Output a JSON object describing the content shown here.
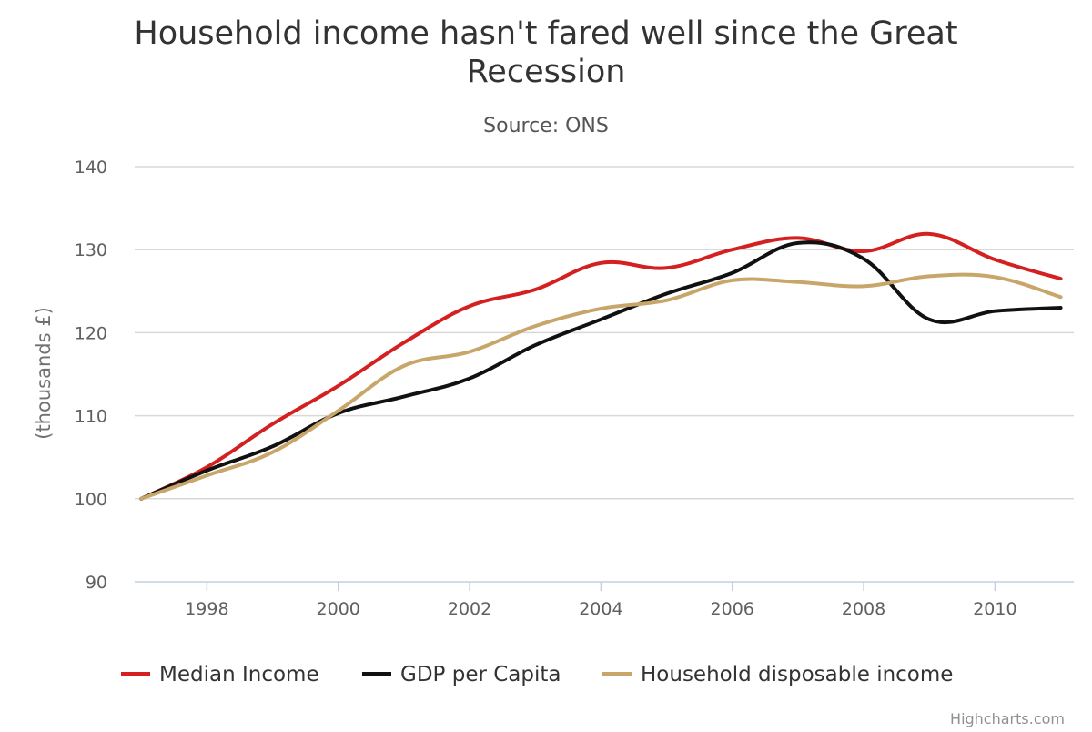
{
  "chart_data": {
    "type": "line",
    "title": "Household income hasn't fared well since the Great Recession",
    "title_lines": [
      "Household income hasn't fared well since the Great",
      "Recession"
    ],
    "subtitle": "Source: ONS",
    "xlabel": "",
    "ylabel": "(thousands £)",
    "x": [
      1997,
      1998,
      1999,
      2000,
      2001,
      2002,
      2003,
      2004,
      2005,
      2006,
      2007,
      2008,
      2009,
      2010,
      2011
    ],
    "xticks": [
      "1998",
      "2000",
      "2002",
      "2004",
      "2006",
      "2008",
      "2010"
    ],
    "yticks": [
      "90",
      "100",
      "110",
      "120",
      "130",
      "140"
    ],
    "ylim": [
      90,
      140
    ],
    "xlim": [
      1996.9,
      2011.2
    ],
    "grid": true,
    "legend_position": "bottom",
    "series": [
      {
        "name": "Median Income",
        "color": "#d42020",
        "values": [
          100,
          103.8,
          109.0,
          113.6,
          118.8,
          123.2,
          125.2,
          128.4,
          127.8,
          130.0,
          131.4,
          129.8,
          131.9,
          128.8,
          126.5
        ]
      },
      {
        "name": "GDP per Capita",
        "color": "#111111",
        "values": [
          100,
          103.4,
          106.3,
          110.3,
          112.3,
          114.5,
          118.5,
          121.6,
          124.7,
          127.2,
          130.8,
          128.9,
          121.6,
          122.6,
          123.0
        ]
      },
      {
        "name": "Household disposable income",
        "color": "#c8a66a",
        "values": [
          100,
          102.8,
          105.6,
          110.6,
          116.0,
          117.7,
          120.8,
          122.9,
          123.9,
          126.3,
          126.1,
          125.6,
          126.8,
          126.7,
          124.3
        ]
      }
    ],
    "credits": "Highcharts.com"
  }
}
